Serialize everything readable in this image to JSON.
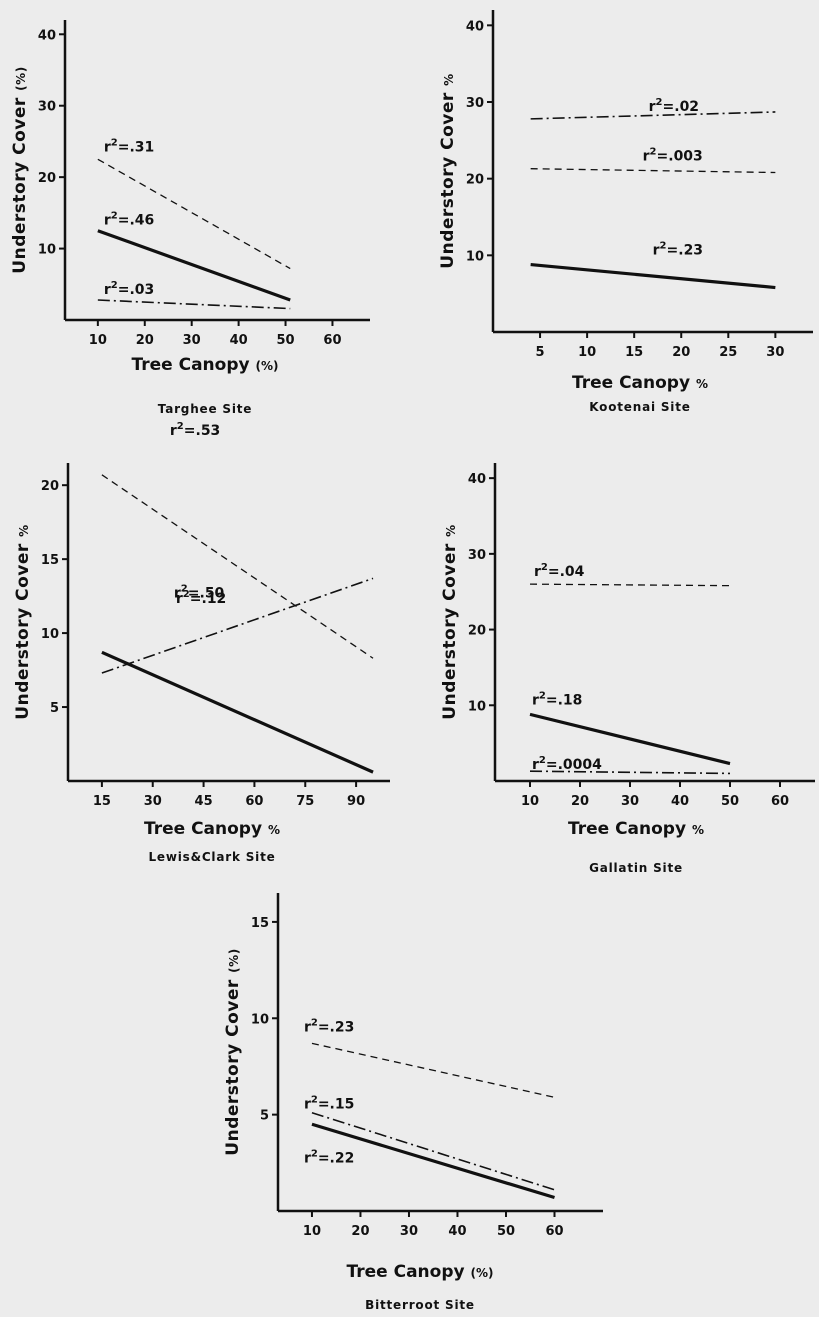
{
  "chart_data": [
    {
      "type": "line",
      "site": "Targhee Site",
      "xlabel": "Tree Canopy",
      "xunit": "(%)",
      "ylabel": "Understory Cover",
      "yunit": "(%)",
      "xticks": [
        10,
        20,
        30,
        40,
        50,
        60
      ],
      "yticks": [
        10,
        20,
        30,
        40
      ],
      "xlim": [
        3,
        68
      ],
      "ylim": [
        0,
        42
      ],
      "series": [
        {
          "style": "dashed",
          "x": [
            10,
            51
          ],
          "y": [
            22.5,
            7.2
          ],
          "label": "r",
          "label_value": "=.31"
        },
        {
          "style": "solid",
          "x": [
            10,
            51
          ],
          "y": [
            12.5,
            2.8
          ],
          "label": "r",
          "label_value": "=.46"
        },
        {
          "style": "dashdot",
          "x": [
            10,
            51
          ],
          "y": [
            2.8,
            1.6
          ],
          "label": "r",
          "label_value": "=.03"
        }
      ]
    },
    {
      "type": "line",
      "site": "Kootenai Site",
      "xlabel": "Tree Canopy",
      "xunit": "%",
      "ylabel": "Understory Cover",
      "yunit": "%",
      "xticks": [
        5,
        10,
        15,
        20,
        25,
        30
      ],
      "yticks": [
        10,
        20,
        30,
        40
      ],
      "xlim": [
        0,
        34
      ],
      "ylim": [
        0,
        42
      ],
      "series": [
        {
          "style": "dashdot",
          "x": [
            4,
            30
          ],
          "y": [
            27.8,
            28.7
          ],
          "label": "r",
          "label_value": "=.02"
        },
        {
          "style": "dashed",
          "x": [
            4,
            30
          ],
          "y": [
            21.3,
            20.8
          ],
          "label": "r",
          "label_value": "=.003"
        },
        {
          "style": "solid",
          "x": [
            4,
            30
          ],
          "y": [
            8.8,
            5.8
          ],
          "label": "r",
          "label_value": "=.23"
        }
      ]
    },
    {
      "type": "line",
      "site": "Lewis&Clark Site",
      "xlabel": "Tree Canopy",
      "xunit": "%",
      "ylabel": "Understory Cover",
      "yunit": "%",
      "xticks": [
        15,
        30,
        45,
        60,
        75,
        90
      ],
      "yticks": [
        5,
        10,
        15,
        20
      ],
      "xlim": [
        5,
        100
      ],
      "ylim": [
        0,
        21.5
      ],
      "series": [
        {
          "style": "dashed",
          "x": [
            15,
            95
          ],
          "y": [
            20.7,
            8.3
          ],
          "label": "r",
          "label_value": "=.53"
        },
        {
          "style": "dashdot",
          "x": [
            15,
            95
          ],
          "y": [
            7.3,
            13.7
          ],
          "label": "r",
          "label_value": "=.12"
        },
        {
          "style": "solid",
          "x": [
            15,
            95
          ],
          "y": [
            8.7,
            0.6
          ],
          "label": "r",
          "label_value": "=.50"
        }
      ]
    },
    {
      "type": "line",
      "site": "Gallatin Site",
      "xlabel": "Tree Canopy",
      "xunit": "%",
      "ylabel": "Understory Cover",
      "yunit": "%",
      "xticks": [
        10,
        20,
        30,
        40,
        50,
        60
      ],
      "yticks": [
        10,
        20,
        30,
        40
      ],
      "xlim": [
        3,
        67
      ],
      "ylim": [
        0,
        42
      ],
      "series": [
        {
          "style": "dashed",
          "x": [
            10,
            50
          ],
          "y": [
            26,
            25.8
          ],
          "label": "r",
          "label_value": "=.04"
        },
        {
          "style": "solid",
          "x": [
            10,
            50
          ],
          "y": [
            8.8,
            2.3
          ],
          "label": "r",
          "label_value": "=.18"
        },
        {
          "style": "dashdot",
          "x": [
            10,
            50
          ],
          "y": [
            1.3,
            1.0
          ],
          "label": "r",
          "label_value": "=.0004"
        }
      ]
    },
    {
      "type": "line",
      "site": "Bitterroot Site",
      "xlabel": "Tree Canopy",
      "xunit": "(%)",
      "ylabel": "Understory Cover",
      "yunit": "(%)",
      "xticks": [
        10,
        20,
        30,
        40,
        50,
        60
      ],
      "yticks": [
        5,
        10,
        15
      ],
      "xlim": [
        3,
        70
      ],
      "ylim": [
        0,
        16.5
      ],
      "series": [
        {
          "style": "dashed",
          "x": [
            10,
            60
          ],
          "y": [
            8.7,
            5.9
          ],
          "label": "r",
          "label_value": "=.23"
        },
        {
          "style": "dashdot",
          "x": [
            10,
            60
          ],
          "y": [
            5.1,
            1.1
          ],
          "label": "r",
          "label_value": "=.15"
        },
        {
          "style": "solid",
          "x": [
            10,
            60
          ],
          "y": [
            4.5,
            0.7
          ],
          "label": "r",
          "label_value": "=.22"
        }
      ]
    }
  ]
}
